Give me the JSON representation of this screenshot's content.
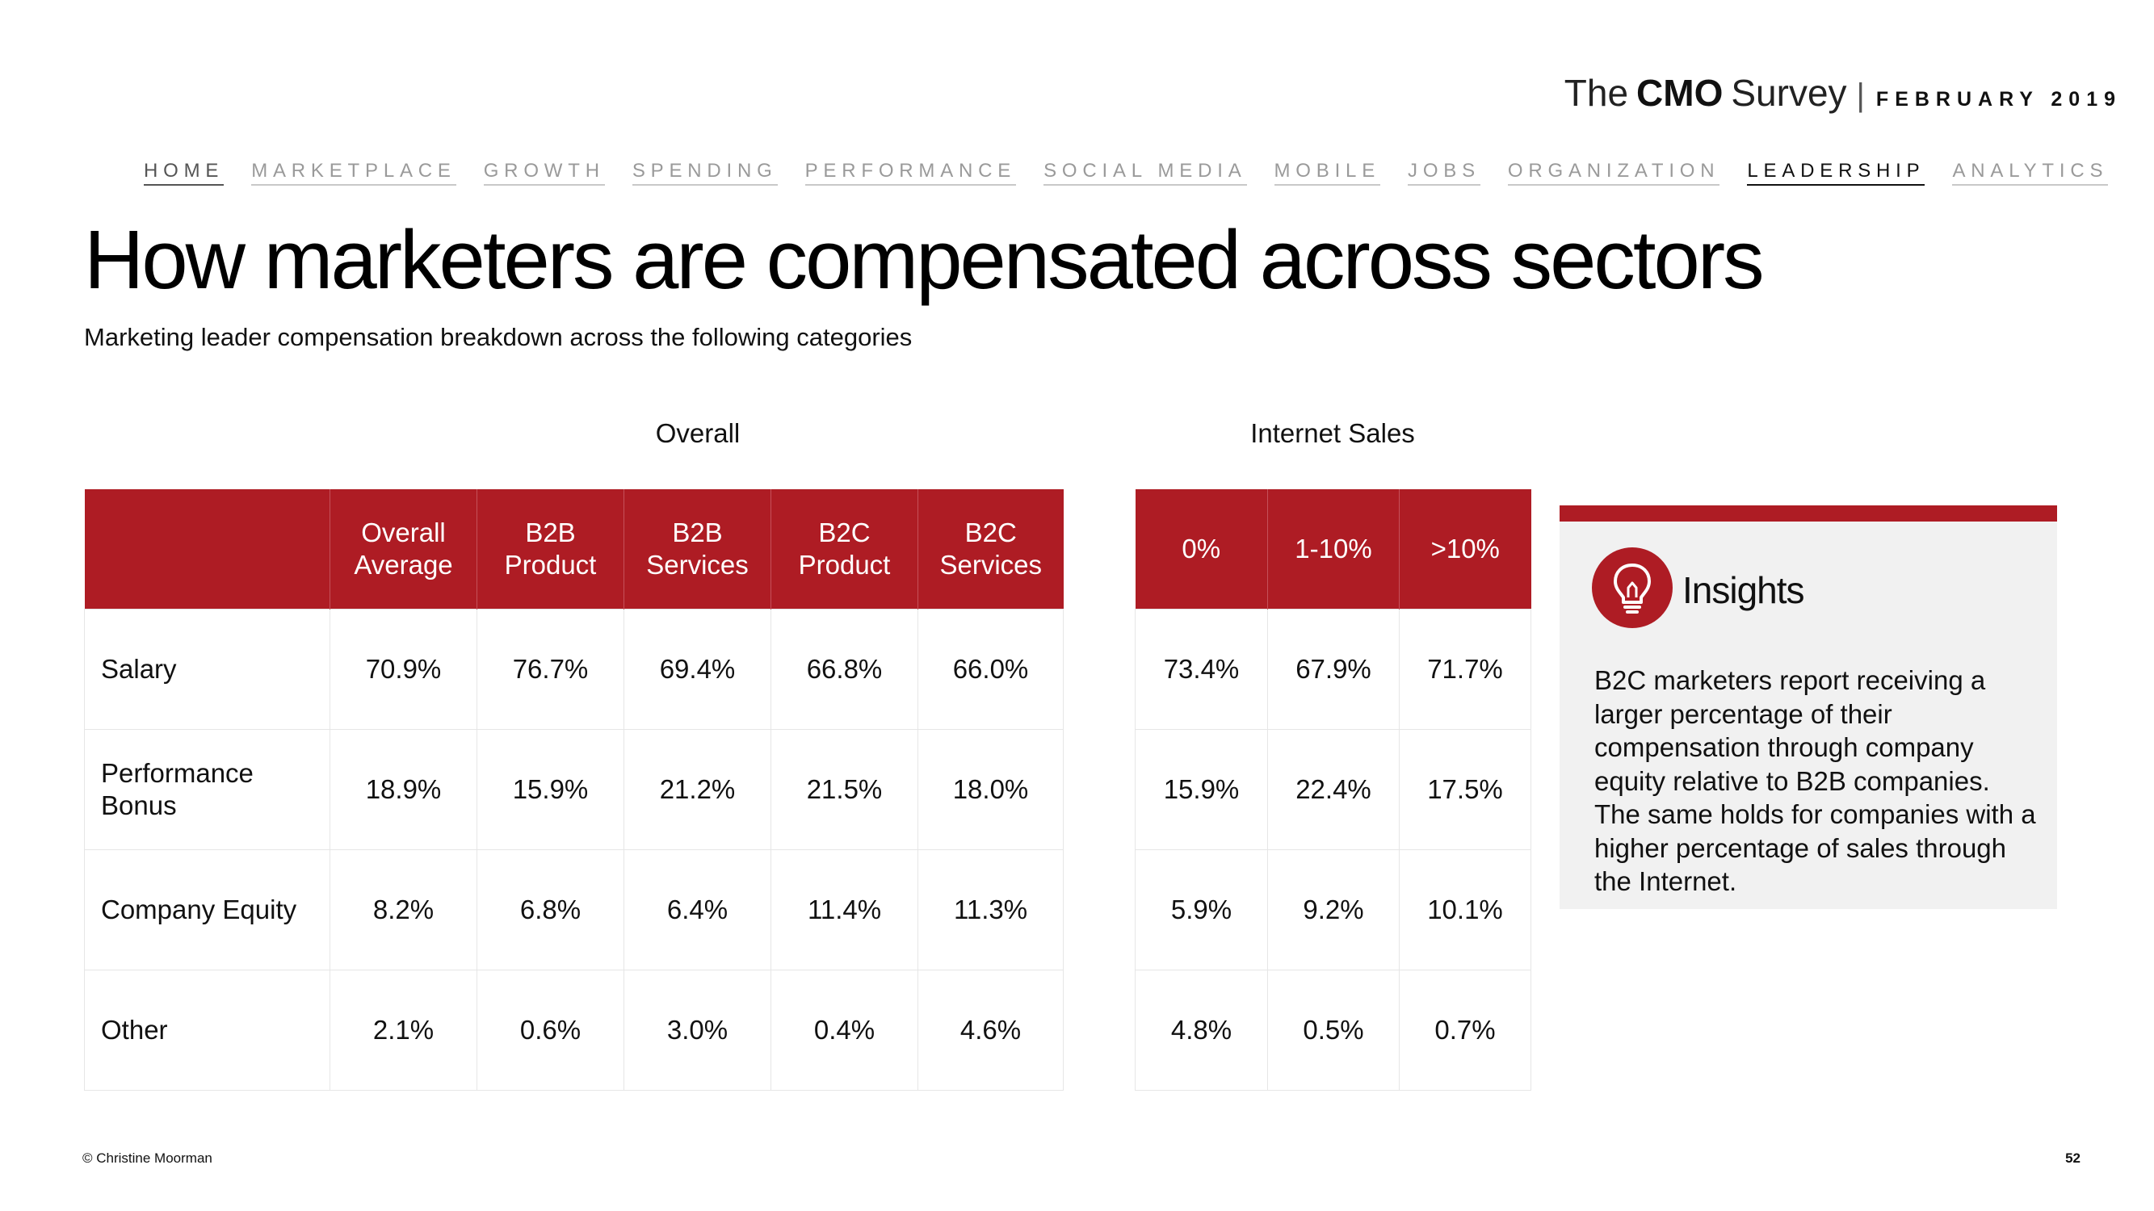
{
  "brand": {
    "the": "The",
    "cmo": "CMO",
    "survey": "Survey",
    "separator": "|",
    "date": "FEBRUARY 2019"
  },
  "nav": [
    "HOME",
    "MARKETPLACE",
    "GROWTH",
    "SPENDING",
    "PERFORMANCE",
    "SOCIAL MEDIA",
    "MOBILE",
    "JOBS",
    "ORGANIZATION",
    "LEADERSHIP",
    "ANALYTICS"
  ],
  "nav_active": "LEADERSHIP",
  "title": "How marketers are compensated across sectors",
  "subtitle": "Marketing leader compensation breakdown across the following categories",
  "overall": {
    "label": "Overall",
    "headers": [
      "Overall Average",
      "B2B Product",
      "B2B Services",
      "B2C Product",
      "B2C Services"
    ]
  },
  "internet": {
    "label": "Internet Sales",
    "headers": [
      "0%",
      "1-10%",
      ">10%"
    ]
  },
  "rows": [
    {
      "label": "Salary",
      "overall": [
        "70.9%",
        "76.7%",
        "69.4%",
        "66.8%",
        "66.0%"
      ],
      "internet": [
        "73.4%",
        "67.9%",
        "71.7%"
      ]
    },
    {
      "label": "Performance Bonus",
      "overall": [
        "18.9%",
        "15.9%",
        "21.2%",
        "21.5%",
        "18.0%"
      ],
      "internet": [
        "15.9%",
        "22.4%",
        "17.5%"
      ]
    },
    {
      "label": "Company Equity",
      "overall": [
        "8.2%",
        "6.8%",
        "6.4%",
        "11.4%",
        "11.3%"
      ],
      "internet": [
        "5.9%",
        "9.2%",
        "10.1%"
      ]
    },
    {
      "label": "Other",
      "overall": [
        "2.1%",
        "0.6%",
        "3.0%",
        "0.4%",
        "4.6%"
      ],
      "internet": [
        "4.8%",
        "0.5%",
        "0.7%"
      ]
    }
  ],
  "insights": {
    "heading": "Insights",
    "icon": "lightbulb-icon",
    "body": "B2C marketers report receiving a larger percentage of their compensation through company equity relative to B2B companies. The same holds for companies with a higher percentage of sales through the Internet."
  },
  "footer": {
    "copyright": "© Christine Moorman",
    "page": "52"
  },
  "colors": {
    "accent": "#ae1c24",
    "panel": "#f1f1f1",
    "grid": "#e6e6e6"
  }
}
